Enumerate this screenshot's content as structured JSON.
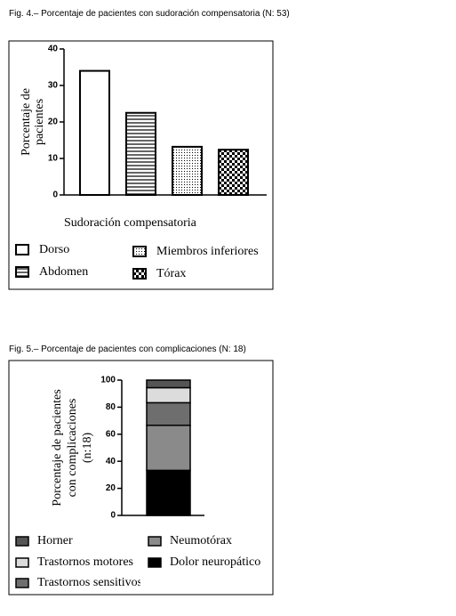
{
  "chart_data": [
    {
      "type": "bar",
      "title": "Fig. 4.– Porcentaje de pacientes con sudoración compensatoria (N: 53)",
      "ylabel": [
        "Porcentaje de",
        "pacientes"
      ],
      "xlabel": "Sudoración compensatoria",
      "categories": [
        "Dorso",
        "Abdomen",
        "Miembros inferiores",
        "Tórax"
      ],
      "values": [
        34,
        22.5,
        13.2,
        12.4
      ],
      "patterns": [
        "none",
        "hlines",
        "dots",
        "checker"
      ],
      "ylim": [
        0,
        40
      ],
      "yticks": [
        0,
        10,
        20,
        30,
        40
      ]
    },
    {
      "type": "stacked_bar",
      "title": "Fig. 5.– Porcentaje de pacientes con complicaciones (N: 18)",
      "ylabel": [
        "Porcentaje de pacientes",
        "con complicaciones",
        "(n:18)"
      ],
      "categories": [
        null
      ],
      "series": [
        {
          "name": "Dolor neuropático",
          "color": "#000000",
          "values": [
            33.3
          ]
        },
        {
          "name": "Neumotórax",
          "color": "#8a8a8a",
          "values": [
            33.3
          ]
        },
        {
          "name": "Trastornos sensitivos",
          "color": "#6e6e6e",
          "values": [
            16.7
          ]
        },
        {
          "name": "Trastornos motores",
          "color": "#dcdcdc",
          "values": [
            11.1
          ]
        },
        {
          "name": "Horner",
          "color": "#555555",
          "values": [
            5.6
          ]
        }
      ],
      "ylim": [
        0,
        100
      ],
      "yticks": [
        0,
        20,
        40,
        60,
        80,
        100
      ]
    }
  ]
}
